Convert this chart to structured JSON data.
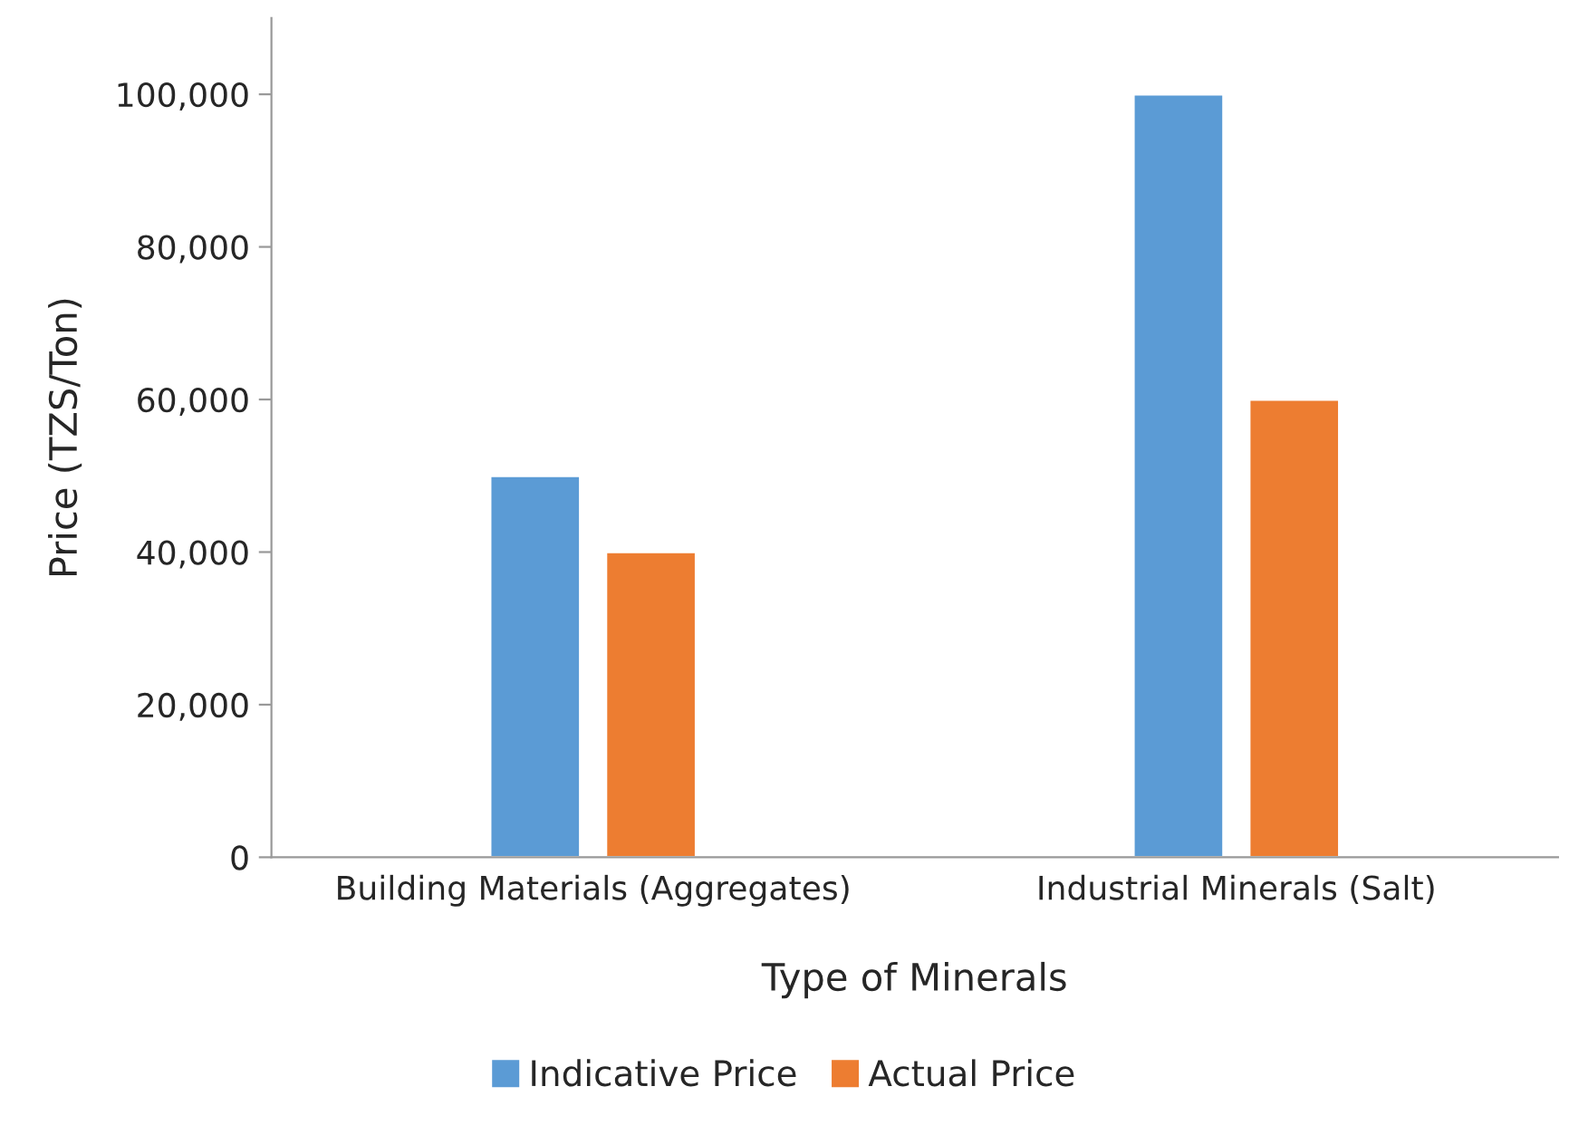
{
  "chart_data": {
    "type": "bar",
    "xlabel": "Type of Minerals",
    "ylabel": "Price (TZS/Ton)",
    "categories": [
      "Building Materials (Aggregates)",
      "Industrial Minerals (Salt)"
    ],
    "series": [
      {
        "name": "Indicative Price",
        "color": "#5b9bd5",
        "values": [
          50000,
          100000
        ]
      },
      {
        "name": "Actual Price",
        "color": "#ed7d31",
        "values": [
          40000,
          60000
        ]
      }
    ],
    "ylim": [
      0,
      110000
    ],
    "yticks": [
      0,
      {
        "value": 20000,
        "label": "20,000"
      },
      {
        "value": 40000,
        "label": "40,000"
      },
      {
        "value": 60000,
        "label": "60,000"
      },
      {
        "value": 80000,
        "label": "80,000"
      },
      {
        "value": 100000,
        "label": "100,000"
      }
    ],
    "grid": false,
    "legend": "bottom"
  }
}
